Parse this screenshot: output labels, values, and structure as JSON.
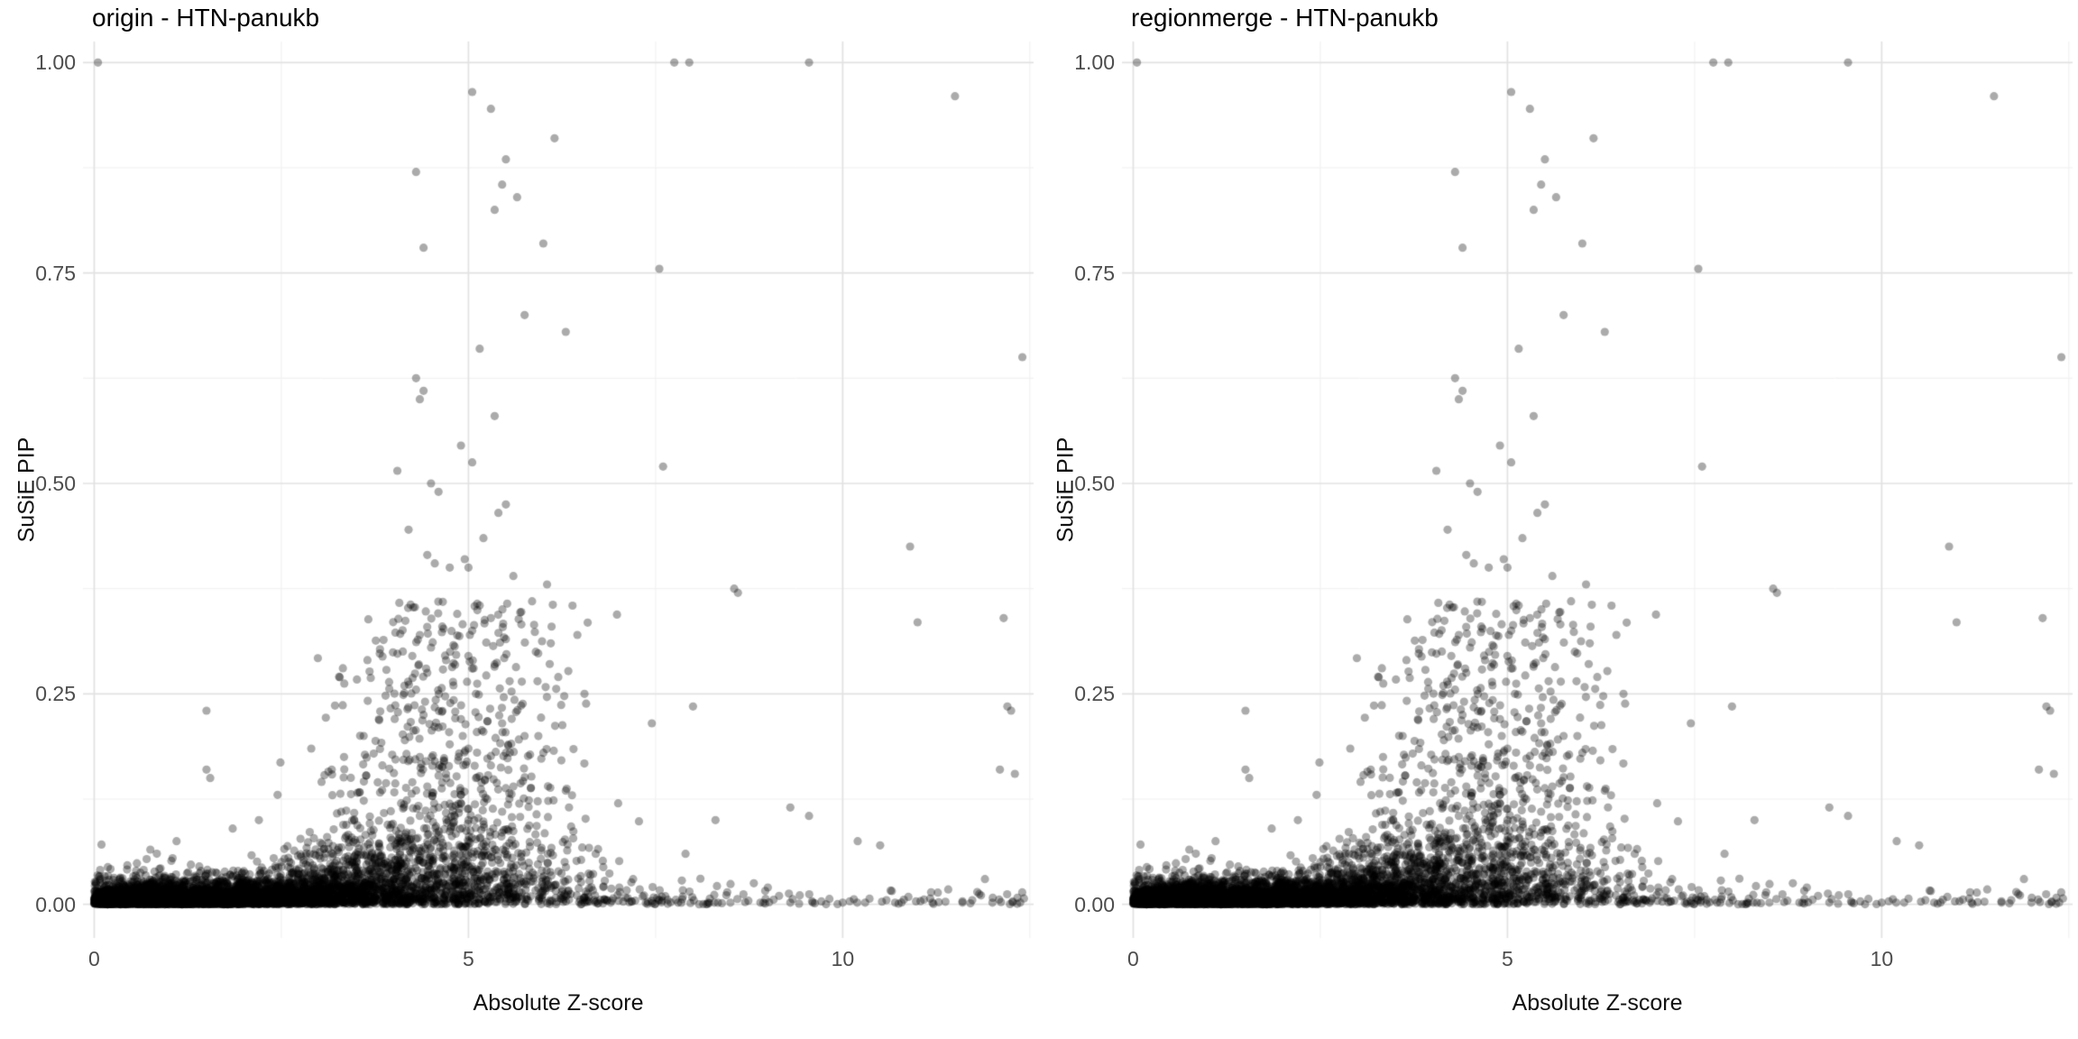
{
  "chart_data": {
    "type": "scatter",
    "note": "two facet panels showing identical SuSiE PIP vs absolute Z-score scatter data",
    "facets": [
      {
        "title": "origin - HTN-panukb"
      },
      {
        "title": "regionmerge - HTN-panukb"
      }
    ],
    "xlabel": "Absolute Z-score",
    "ylabel": "SuSiE PIP",
    "xlim": [
      -0.15,
      12.55
    ],
    "ylim": [
      -0.04,
      1.025
    ],
    "x_ticks": [
      {
        "v": 0,
        "label": "0"
      },
      {
        "v": 5,
        "label": "5"
      },
      {
        "v": 10,
        "label": "10"
      }
    ],
    "x_minor": [
      2.5,
      7.5,
      12.5
    ],
    "y_ticks": [
      {
        "v": 0,
        "label": "0.00"
      },
      {
        "v": 0.25,
        "label": "0.25"
      },
      {
        "v": 0.5,
        "label": "0.50"
      },
      {
        "v": 0.75,
        "label": "0.75"
      },
      {
        "v": 1,
        "label": "1.00"
      }
    ],
    "y_minor": [
      0.125,
      0.375,
      0.625,
      0.875
    ],
    "grid": {
      "on": true,
      "major_color": "#e2e2e2",
      "minor_color": "#f0f0f0"
    },
    "points": {
      "color": "#000000",
      "alpha": 0.33,
      "radius": 4.6
    },
    "notable_points": [
      [
        0.05,
        1.0
      ],
      [
        7.75,
        1.0
      ],
      [
        7.95,
        1.0
      ],
      [
        9.55,
        1.0
      ],
      [
        5.05,
        0.965
      ],
      [
        5.3,
        0.945
      ],
      [
        11.5,
        0.96
      ],
      [
        6.15,
        0.91
      ],
      [
        5.5,
        0.885
      ],
      [
        4.3,
        0.87
      ],
      [
        5.45,
        0.855
      ],
      [
        5.65,
        0.84
      ],
      [
        5.35,
        0.825
      ],
      [
        6.0,
        0.785
      ],
      [
        4.4,
        0.78
      ],
      [
        7.55,
        0.755
      ],
      [
        5.75,
        0.7
      ],
      [
        6.3,
        0.68
      ],
      [
        5.15,
        0.66
      ],
      [
        12.4,
        0.65
      ],
      [
        4.3,
        0.625
      ],
      [
        4.4,
        0.61
      ],
      [
        4.35,
        0.6
      ],
      [
        5.35,
        0.58
      ],
      [
        4.9,
        0.545
      ],
      [
        5.05,
        0.525
      ],
      [
        7.6,
        0.52
      ],
      [
        4.05,
        0.515
      ],
      [
        4.5,
        0.5
      ],
      [
        4.6,
        0.49
      ],
      [
        5.5,
        0.475
      ],
      [
        5.4,
        0.465
      ],
      [
        4.2,
        0.445
      ],
      [
        5.2,
        0.435
      ],
      [
        10.9,
        0.425
      ],
      [
        4.45,
        0.415
      ],
      [
        4.95,
        0.41
      ],
      [
        4.55,
        0.405
      ],
      [
        5.0,
        0.4
      ],
      [
        4.75,
        0.4
      ],
      [
        5.6,
        0.39
      ],
      [
        6.05,
        0.38
      ],
      [
        8.55,
        0.375
      ],
      [
        8.6,
        0.37
      ],
      [
        12.15,
        0.34
      ],
      [
        11.0,
        0.335
      ],
      [
        5.85,
        0.36
      ],
      [
        5.15,
        0.355
      ],
      [
        4.85,
        0.345
      ],
      [
        5.3,
        0.34
      ],
      [
        4.65,
        0.33
      ],
      [
        5.05,
        0.325
      ],
      [
        4.35,
        0.32
      ],
      [
        5.5,
        0.315
      ],
      [
        6.1,
        0.31
      ],
      [
        4.5,
        0.305
      ],
      [
        5.9,
        0.3
      ],
      [
        4.25,
        0.295
      ],
      [
        4.7,
        0.29
      ],
      [
        5.35,
        0.285
      ],
      [
        5.05,
        0.28
      ],
      [
        4.45,
        0.275
      ],
      [
        6.2,
        0.27
      ],
      [
        5.55,
        0.265
      ],
      [
        4.8,
        0.26
      ],
      [
        4.3,
        0.255
      ],
      [
        5.1,
        0.25
      ],
      [
        6.55,
        0.25
      ],
      [
        1.5,
        0.23
      ],
      [
        8.0,
        0.235
      ],
      [
        12.2,
        0.235
      ],
      [
        12.25,
        0.23
      ],
      [
        4.4,
        0.225
      ],
      [
        4.9,
        0.22
      ],
      [
        5.45,
        0.215
      ],
      [
        7.45,
        0.215
      ],
      [
        4.6,
        0.21
      ],
      [
        5.2,
        0.205
      ],
      [
        5.75,
        0.2
      ],
      [
        3.6,
        0.2
      ],
      [
        4.15,
        0.195
      ],
      [
        4.75,
        0.19
      ],
      [
        2.9,
        0.185
      ],
      [
        5.0,
        0.185
      ],
      [
        5.5,
        0.18
      ],
      [
        6.0,
        0.18
      ],
      [
        4.35,
        0.175
      ],
      [
        4.55,
        0.17
      ],
      [
        3.85,
        0.165
      ],
      [
        5.3,
        0.165
      ],
      [
        1.5,
        0.16
      ],
      [
        1.55,
        0.15
      ],
      [
        12.3,
        0.155
      ],
      [
        12.1,
        0.16
      ],
      [
        4.7,
        0.155
      ],
      [
        5.1,
        0.15
      ],
      [
        4.25,
        0.145
      ],
      [
        4.45,
        0.14
      ],
      [
        5.6,
        0.14
      ],
      [
        6.3,
        0.135
      ],
      [
        2.45,
        0.13
      ],
      [
        4.9,
        0.13
      ],
      [
        5.25,
        0.125
      ],
      [
        4.1,
        0.12
      ],
      [
        7.0,
        0.12
      ],
      [
        9.3,
        0.115
      ],
      [
        4.6,
        0.115
      ],
      [
        3.3,
        0.11
      ],
      [
        5.45,
        0.11
      ],
      [
        4.35,
        0.105
      ],
      [
        9.55,
        0.105
      ],
      [
        5.0,
        0.1
      ],
      [
        8.3,
        0.1
      ],
      [
        2.2,
        0.1
      ],
      [
        1.85,
        0.09
      ],
      [
        10.2,
        0.075
      ],
      [
        1.1,
        0.075
      ],
      [
        0.75,
        0.065
      ],
      [
        10.5,
        0.07
      ],
      [
        11.9,
        0.03
      ],
      [
        9.0,
        0.02
      ],
      [
        9.15,
        0.01
      ],
      [
        9.3,
        0.002
      ],
      [
        9.6,
        0.002
      ],
      [
        10.0,
        0.002
      ],
      [
        10.3,
        0.002
      ],
      [
        10.7,
        0.002
      ],
      [
        11.2,
        0.002
      ],
      [
        11.6,
        0.002
      ],
      [
        12.0,
        0.002
      ],
      [
        8.9,
        0.002
      ],
      [
        8.2,
        0.002
      ],
      [
        8.5,
        0.002
      ],
      [
        7.9,
        0.06
      ],
      [
        7.8,
        0.002
      ],
      [
        7.2,
        0.03
      ],
      [
        6.9,
        0.002
      ],
      [
        6.7,
        0.06
      ]
    ],
    "cloud": {
      "seed": 11,
      "baseline_n": 5600,
      "baseline_sigma": 2.6,
      "bump_amp": 4.0,
      "bump_mu": 4.7,
      "bump_sigma": 1.1,
      "base_yscale": 0.008,
      "funnel_n": 650,
      "funnel_mu": 4.9,
      "funnel_sigma": 0.9,
      "funnel_pow": 1.6,
      "funnel_ymax": 0.36,
      "tail_n": 90,
      "tail_min": 6.5,
      "tail_max": 12.45
    }
  }
}
